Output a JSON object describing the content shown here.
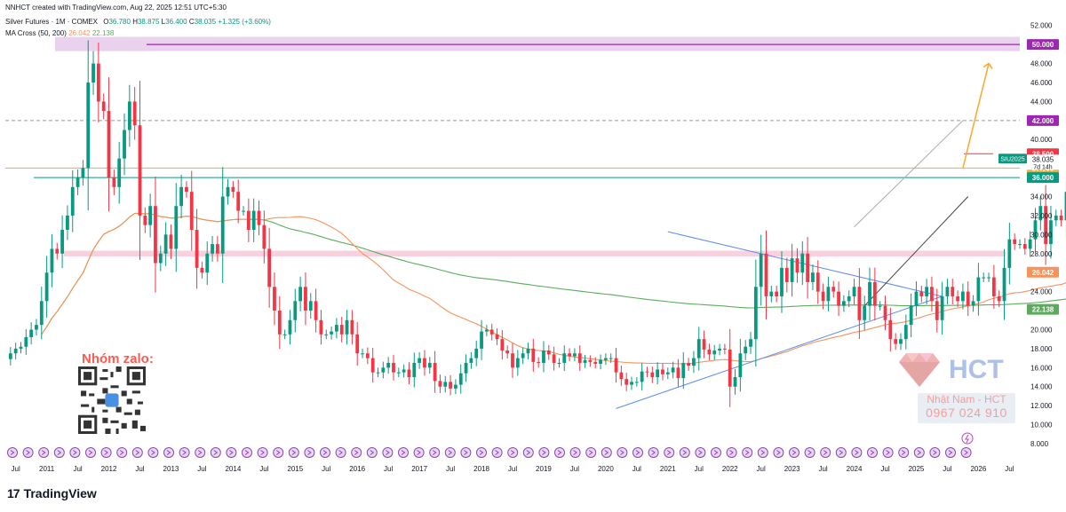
{
  "header": {
    "created": "NNHCT created with TradingView.com, Aug 22, 2025 12:51 UTC+5:30",
    "symbol": "Silver Futures · 1M · COMEX",
    "o_label": "O",
    "o_value": "36.780",
    "h_label": "H",
    "h_value": "38.875",
    "l_label": "L",
    "l_value": "36.400",
    "c_label": "C",
    "c_value": "38.035",
    "change": "+1.325 (+3.60%)",
    "indicator_name": "MA Cross (50, 200)",
    "ma50_value": "26.042",
    "ma200_value": "22.138"
  },
  "branding": {
    "logo_mark": "17",
    "name": "TradingView"
  },
  "watermark": {
    "zalo_label": "Nhóm zalo:",
    "company_logo": "HCT",
    "contact_name": "Nhật Nam - HCT",
    "contact_phone": "0967 024 910"
  },
  "colors": {
    "up": "#089981",
    "down": "#f23645",
    "ma50": "#f7925a",
    "ma200": "#5cab5c",
    "resistance_purple": "#9c27b0",
    "arrow": "#ffa726",
    "trendline": "#5b8def",
    "price_tag": "#089981"
  },
  "chart_data": {
    "type": "candlestick",
    "instrument": "Silver Futures",
    "interval": "1M",
    "y_axis": {
      "ticks": [
        "8.000",
        "10.000",
        "12.000",
        "14.000",
        "16.000",
        "18.000",
        "20.000",
        "22.000",
        "24.000",
        "26.000",
        "28.000",
        "30.000",
        "32.000",
        "34.000",
        "36.000",
        "38.000",
        "40.000",
        "42.000",
        "44.000",
        "46.000",
        "48.000",
        "50.000",
        "52.000"
      ],
      "ylim": [
        8,
        53
      ]
    },
    "x_axis": {
      "labels": [
        "Jul",
        "2011",
        "Jul",
        "2012",
        "Jul",
        "2013",
        "Jul",
        "2014",
        "Jul",
        "2015",
        "Jul",
        "2016",
        "Jul",
        "2017",
        "Jul",
        "2018",
        "Jul",
        "2019",
        "Jul",
        "2020",
        "Jul",
        "2021",
        "Jul",
        "2022",
        "Jul",
        "2023",
        "Jul",
        "2024",
        "Jul",
        "2025",
        "Jul",
        "2026",
        "Jul"
      ],
      "range": [
        "2010-05",
        "2026-09"
      ]
    },
    "price_labels": [
      {
        "text": "50.000",
        "value": 50,
        "color": "#9c27b0"
      },
      {
        "text": "42.000",
        "value": 42,
        "color": "#9c27b0"
      },
      {
        "text": "38.500",
        "value": 38.5,
        "color": "#f23645"
      },
      {
        "text": "37.000",
        "value": 37,
        "color": "#ffa726"
      },
      {
        "text": "36.000",
        "value": 36,
        "color": "#089981"
      },
      {
        "text": "26.042",
        "value": 26.042,
        "color": "#f7925a"
      },
      {
        "text": "22.138",
        "value": 22.138,
        "color": "#5cab5c"
      }
    ],
    "current_price": {
      "value": 38.035,
      "text": "38.035",
      "countdown": "7d 14h",
      "symbol_tag": "SIU2025"
    },
    "series": [
      {
        "name": "Silver Futures",
        "type": "candlestick",
        "resolution": "monthly",
        "start": "2010-06",
        "close": [
          17.5,
          18.0,
          18.2,
          19.2,
          20.0,
          20.5,
          23.0,
          26.0,
          28.5,
          28.0,
          30.5,
          32.0,
          35.0,
          36.0,
          37.0,
          46.0,
          48.0,
          44.0,
          43.0,
          36.0,
          35.0,
          38.0,
          41.0,
          44.0,
          41.5,
          32.0,
          31.0,
          33.0,
          27.0,
          28.0,
          30.0,
          28.5,
          33.0,
          35.0,
          34.5,
          30.5,
          26.5,
          26.0,
          28.0,
          29.0,
          28.0,
          34.0,
          35.0,
          34.5,
          32.5,
          32.5,
          30.5,
          32.5,
          31.0,
          28.5,
          24.5,
          22.0,
          19.5,
          19.5,
          21.0,
          23.0,
          24.5,
          22.0,
          23.0,
          21.0,
          19.5,
          19.5,
          19.8,
          20.5,
          19.5,
          21.0,
          19.5,
          17.5,
          17.5,
          17.0,
          15.5,
          15.5,
          16.0,
          16.5,
          15.5,
          15.5,
          15.8,
          15.0,
          16.5,
          17.0,
          16.0,
          16.5,
          14.6,
          14.0,
          14.5,
          13.8,
          14.2,
          15.4,
          16.5,
          17.0,
          18.0,
          19.8,
          20.0,
          19.5,
          19.0,
          17.8,
          17.5,
          16.0,
          17.0,
          17.5,
          18.0,
          16.6,
          16.5,
          17.8,
          17.4,
          16.5,
          16.5,
          17.5,
          17.2,
          17.5,
          16.5,
          16.8,
          16.6,
          16.4,
          16.8,
          17.0,
          17.0,
          15.5,
          14.8,
          14.2,
          14.5,
          14.5,
          15.6,
          15.5,
          15.0,
          15.8,
          15.3,
          15.5,
          16.0,
          14.9,
          16.5,
          16.2,
          17.0,
          19.0,
          17.9,
          17.4,
          17.8,
          18.0,
          17.9,
          14.0,
          15.0,
          17.5,
          18.2,
          19.0,
          24.5,
          28.0,
          23.5,
          24.0,
          23.5,
          26.5,
          25.0,
          27.5,
          26.0,
          28.0,
          25.0,
          26.0,
          24.0,
          23.0,
          24.5,
          24.0,
          22.5,
          23.0,
          23.5,
          24.5,
          21.0,
          22.5,
          25.0,
          22.5,
          22.5,
          21.0,
          19.0,
          18.5,
          19.0,
          20.5,
          22.5,
          24.0,
          23.5,
          24.5,
          23.0,
          21.0,
          23.5,
          24.5,
          23.5,
          23.0,
          24.0,
          22.5,
          23.0,
          25.5,
          25.5,
          25.5,
          23.5,
          23.0,
          26.5,
          29.5,
          29.0,
          29.0,
          28.5,
          29.5,
          31.5,
          33.0,
          29.0,
          31.5,
          32.0,
          31.5,
          34.5,
          33.5,
          34.0,
          36.0,
          38.0
        ]
      }
    ],
    "moving_averages": [
      {
        "name": "MA 50",
        "value": 26.042,
        "color": "#f7925a"
      },
      {
        "name": "MA 200",
        "value": 22.138,
        "color": "#5cab5c"
      }
    ],
    "annotations": {
      "horizontal_lines": [
        {
          "value": 50.0,
          "color": "#9c27b0",
          "style": "solid"
        },
        {
          "value": 42.0,
          "color": "#999999",
          "style": "dashed"
        },
        {
          "value": 37.0,
          "color": "#ffa726",
          "style": "solid"
        },
        {
          "value": 36.0,
          "color": "#089981",
          "style": "solid"
        },
        {
          "value": 38.5,
          "color": "#f23645",
          "style": "solid"
        }
      ],
      "zones": [
        {
          "from": 49.3,
          "to": 50.8,
          "color": "#e1bee7"
        },
        {
          "from": 27.7,
          "to": 28.3,
          "color": "#f8bbd0"
        }
      ],
      "triangle": {
        "points": [
          [
            "2021-01",
            30.3
          ],
          [
            "2020-03",
            11.7
          ],
          [
            "2025-06",
            23.5
          ]
        ]
      },
      "channel": {
        "upper": [
          [
            "2024-01",
            30.8
          ],
          [
            "2025-10",
            42.0
          ]
        ],
        "lower": [
          [
            "2024-03",
            22.5
          ],
          [
            "2025-11",
            34.0
          ]
        ]
      },
      "projection_arrow": {
        "from": [
          "2025-10",
          37.0
        ],
        "to": [
          "2026-03",
          48.0
        ]
      }
    }
  }
}
